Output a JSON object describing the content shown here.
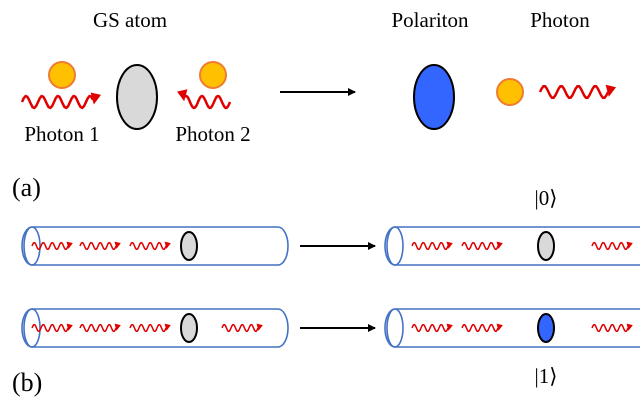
{
  "labels": {
    "gs_atom": "GS atom",
    "polariton": "Polariton",
    "photon": "Photon",
    "photon1": "Photon 1",
    "photon2": "Photon 2",
    "panel_a": "(a)",
    "panel_b": "(b)",
    "ket0": "|0⟩",
    "ket1": "|1⟩"
  }
}
